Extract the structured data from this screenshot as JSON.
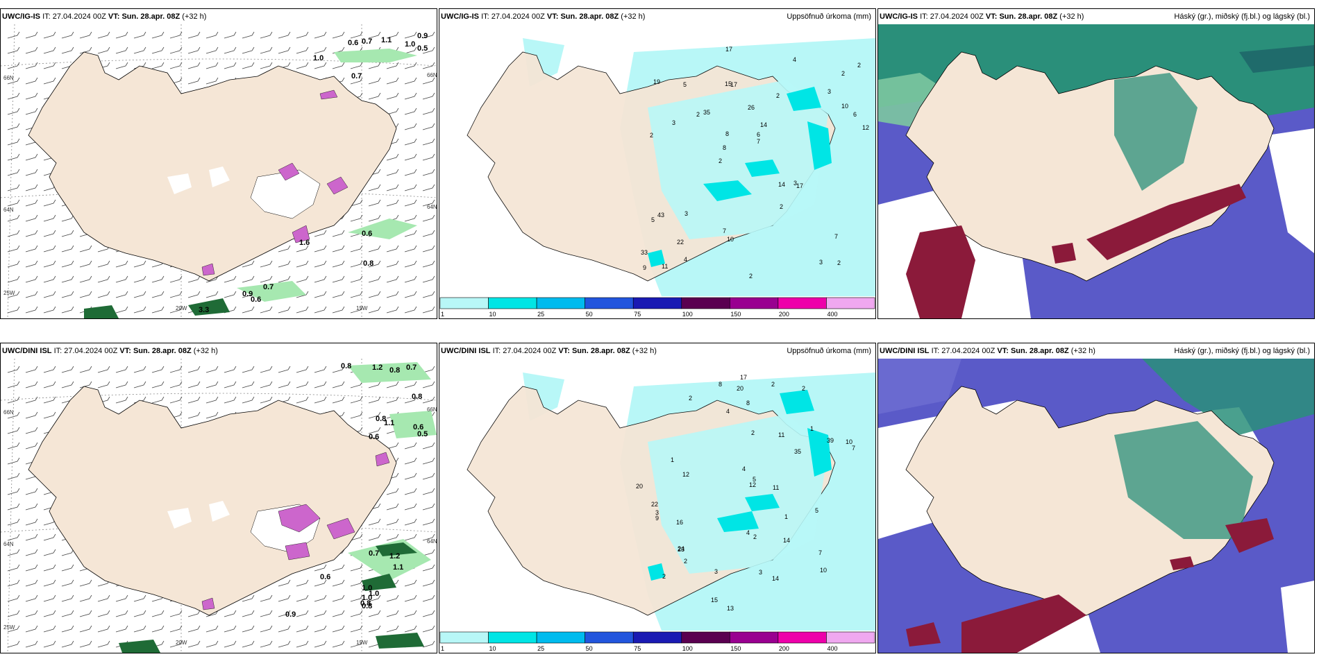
{
  "rows": [
    {
      "model": "UWC/IG-IS",
      "it_label": "IT:",
      "it_value": "27.04.2024 00Z",
      "vt_label": "VT:",
      "vt_value": "Sun. 28.apr. 08Z",
      "lead": "(+32 h)",
      "wind_values": [
        "0.9",
        "0.5",
        "0.6",
        "0.7",
        "1.1",
        "1.0",
        "1.0",
        "0.7",
        "0.8",
        "0.9",
        "0.7",
        "0.6",
        "3.3",
        "1.6",
        "0.6"
      ],
      "precip_values": [
        "2",
        "2",
        "2",
        "2",
        "2",
        "11",
        "15",
        "26",
        "43",
        "35",
        "33",
        "22",
        "17",
        "14",
        "17",
        "19",
        "17",
        "12",
        "14",
        "10",
        "8",
        "7",
        "8",
        "5",
        "4",
        "3",
        "3",
        "7",
        "3",
        "2",
        "2",
        "3",
        "2",
        "4",
        "6",
        "6",
        "9",
        "10",
        "7",
        "5",
        "3",
        "2"
      ],
      "lon_labels": [
        "20W",
        "15W",
        "25W"
      ],
      "lat_labels": [
        "66N",
        "64N",
        "66N",
        "64N"
      ]
    },
    {
      "model": "UWC/DINI ISL",
      "it_label": "IT:",
      "it_value": "27.04.2024 00Z",
      "vt_label": "VT:",
      "vt_value": "Sun. 28.apr. 08Z",
      "lead": "(+32 h)",
      "wind_values": [
        "0.8",
        "1.2",
        "0.8",
        "0.7",
        "0.8",
        "0.8",
        "1.1",
        "0.6",
        "0.5",
        "0.6",
        "0.7",
        "1.2",
        "1.0",
        "1.1",
        "1.0",
        "0.8",
        "0.6",
        "0.9",
        "1.0",
        "0.8"
      ],
      "precip_values": [
        "2",
        "2",
        "2",
        "1",
        "2",
        "12",
        "16",
        "24",
        "39",
        "35",
        "22",
        "17",
        "14",
        "12",
        "13",
        "8",
        "10",
        "20",
        "23",
        "15",
        "14",
        "20",
        "4",
        "5",
        "4",
        "3",
        "3",
        "2",
        "2",
        "1",
        "1",
        "2",
        "3",
        "4",
        "7",
        "9",
        "10",
        "11",
        "11",
        "5",
        "7",
        "8"
      ],
      "lon_labels": [
        "20W",
        "15W",
        "25W"
      ],
      "lat_labels": [
        "66N",
        "64N",
        "66N",
        "64N"
      ]
    }
  ],
  "precip_title": "Uppsöfnuð úrkoma (mm)",
  "cloud_title": "Háský (gr.), miðský (fj.bl.) og lágský (bl.)",
  "colorbar": {
    "ticks": [
      "1",
      "10",
      "25",
      "50",
      "75",
      "100",
      "150",
      "200",
      "400"
    ],
    "colors": [
      "#b8f7f7",
      "#00e5e5",
      "#00bbee",
      "#2255dd",
      "#1a1ab3",
      "#5a0050",
      "#990090",
      "#ee00aa",
      "#f0a8f0"
    ]
  },
  "colors": {
    "land": "#f5e6d6",
    "sea": "#ffffff",
    "precip_light": "#b8f7f7",
    "precip_mid": "#00e5e5",
    "snow_purple": "#cc66cc",
    "green_dark": "#1f6b36",
    "green_light": "#a6e8b0",
    "high_cloud": "#2a8f7a",
    "mid_cloud": "#5a5ac8",
    "low_cloud": "#8b1a3a"
  }
}
